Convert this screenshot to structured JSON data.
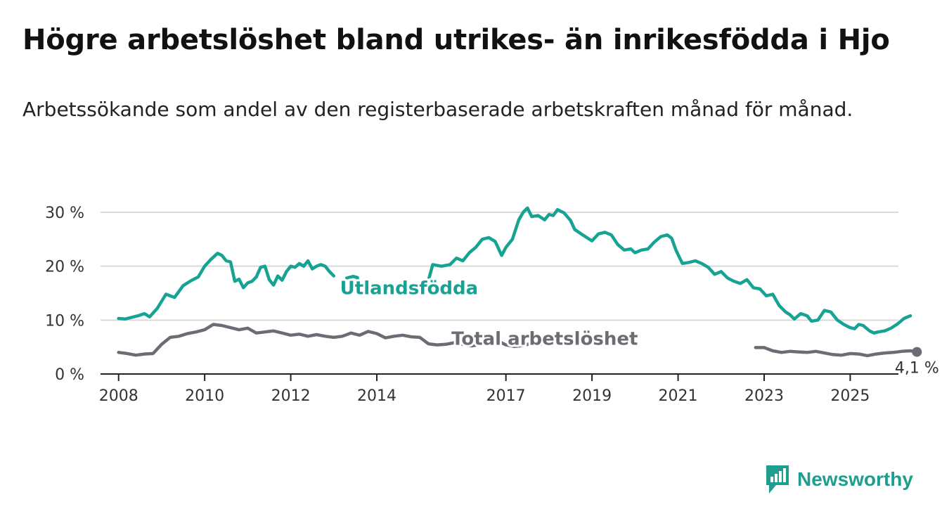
{
  "title": "Högre arbetslöshet bland utrikes- än inrikesfödda i Hjo",
  "subtitle": "Arbetssökande som andel av den registerbaserade arbetskraften månad för månad.",
  "brand": {
    "name": "Newsworthy",
    "color": "#1f9d8f"
  },
  "colors": {
    "foreign": "#17a393",
    "total": "#6e6b74",
    "grid": "#d9d9d9",
    "axis": "#222222"
  },
  "chart_data": {
    "type": "line",
    "title": "Högre arbetslöshet bland utrikes- än inrikesfödda i Hjo",
    "xlabel": "",
    "ylabel": "",
    "xlim": [
      2007.58,
      2026.12
    ],
    "ylim": [
      0,
      30
    ],
    "y_ticks": [
      0,
      10,
      20,
      30
    ],
    "y_tick_labels": [
      "0 %",
      "10 %",
      "20 %",
      "30 %"
    ],
    "x_ticks": [
      2008,
      2010,
      2012,
      2014,
      2017,
      2019,
      2021,
      2023,
      2025
    ],
    "x_tick_labels": [
      "2008",
      "2010",
      "2012",
      "2014",
      "2017",
      "2019",
      "2021",
      "2023",
      "2025"
    ],
    "grid": true,
    "series": [
      {
        "name": "Utlandsfödda",
        "color": "#17a393",
        "segments": [
          [
            [
              2008.0,
              10.3
            ],
            [
              2008.15,
              10.2
            ],
            [
              2008.3,
              10.5
            ],
            [
              2008.45,
              10.8
            ],
            [
              2008.6,
              11.2
            ],
            [
              2008.72,
              10.6
            ],
            [
              2008.9,
              12.2
            ],
            [
              2009.1,
              14.8
            ],
            [
              2009.3,
              14.2
            ],
            [
              2009.5,
              16.4
            ],
            [
              2009.7,
              17.4
            ],
            [
              2009.85,
              18.0
            ],
            [
              2010.0,
              20.0
            ],
            [
              2010.15,
              21.3
            ],
            [
              2010.3,
              22.4
            ],
            [
              2010.4,
              22.0
            ],
            [
              2010.5,
              21.0
            ],
            [
              2010.6,
              20.8
            ],
            [
              2010.7,
              17.2
            ],
            [
              2010.8,
              17.6
            ],
            [
              2010.9,
              16.0
            ],
            [
              2011.0,
              16.9
            ],
            [
              2011.1,
              17.2
            ],
            [
              2011.2,
              18.0
            ],
            [
              2011.3,
              19.8
            ],
            [
              2011.4,
              20.0
            ],
            [
              2011.5,
              17.5
            ],
            [
              2011.6,
              16.5
            ],
            [
              2011.7,
              18.2
            ],
            [
              2011.8,
              17.4
            ],
            [
              2011.9,
              19.0
            ],
            [
              2012.0,
              20.0
            ],
            [
              2012.1,
              19.8
            ],
            [
              2012.2,
              20.5
            ],
            [
              2012.3,
              20.0
            ],
            [
              2012.4,
              21.0
            ],
            [
              2012.5,
              19.5
            ],
            [
              2012.6,
              20.0
            ],
            [
              2012.7,
              20.3
            ],
            [
              2012.8,
              20.0
            ],
            [
              2012.9,
              19.0
            ],
            [
              2013.0,
              18.2
            ]
          ],
          [
            [
              2013.3,
              17.8
            ],
            [
              2013.45,
              18.1
            ],
            [
              2013.55,
              17.9
            ]
          ],
          [
            [
              2013.55,
              17.1
            ]
          ],
          [
            [
              2015.2,
              17.4
            ],
            [
              2015.3,
              20.3
            ],
            [
              2015.5,
              20.0
            ],
            [
              2015.7,
              20.3
            ],
            [
              2015.85,
              21.5
            ],
            [
              2016.0,
              21.0
            ],
            [
              2016.15,
              22.5
            ],
            [
              2016.3,
              23.5
            ],
            [
              2016.45,
              25.0
            ],
            [
              2016.6,
              25.3
            ],
            [
              2016.75,
              24.6
            ],
            [
              2016.9,
              22.0
            ],
            [
              2017.0,
              23.5
            ],
            [
              2017.15,
              25.0
            ],
            [
              2017.3,
              28.6
            ],
            [
              2017.4,
              30.0
            ],
            [
              2017.5,
              30.8
            ],
            [
              2017.6,
              29.2
            ],
            [
              2017.75,
              29.4
            ],
            [
              2017.9,
              28.6
            ],
            [
              2018.0,
              29.6
            ],
            [
              2018.1,
              29.4
            ],
            [
              2018.2,
              30.5
            ],
            [
              2018.35,
              29.9
            ],
            [
              2018.5,
              28.5
            ],
            [
              2018.6,
              26.8
            ],
            [
              2018.75,
              26.0
            ],
            [
              2018.9,
              25.2
            ],
            [
              2019.0,
              24.7
            ],
            [
              2019.15,
              26.0
            ],
            [
              2019.3,
              26.3
            ],
            [
              2019.45,
              25.8
            ],
            [
              2019.6,
              24.0
            ],
            [
              2019.75,
              23.0
            ],
            [
              2019.9,
              23.2
            ],
            [
              2020.0,
              22.5
            ],
            [
              2020.15,
              23.0
            ],
            [
              2020.3,
              23.2
            ],
            [
              2020.45,
              24.5
            ],
            [
              2020.6,
              25.5
            ],
            [
              2020.75,
              25.8
            ],
            [
              2020.85,
              25.2
            ],
            [
              2020.95,
              23.0
            ],
            [
              2021.1,
              20.5
            ],
            [
              2021.25,
              20.7
            ],
            [
              2021.4,
              21.0
            ],
            [
              2021.55,
              20.5
            ],
            [
              2021.7,
              19.8
            ],
            [
              2021.85,
              18.5
            ],
            [
              2022.0,
              19.0
            ],
            [
              2022.15,
              17.8
            ],
            [
              2022.3,
              17.2
            ],
            [
              2022.45,
              16.8
            ],
            [
              2022.6,
              17.5
            ],
            [
              2022.75,
              16.0
            ],
            [
              2022.9,
              15.8
            ],
            [
              2023.05,
              14.5
            ],
            [
              2023.2,
              14.8
            ],
            [
              2023.35,
              12.7
            ],
            [
              2023.5,
              11.5
            ],
            [
              2023.6,
              11.0
            ],
            [
              2023.7,
              10.2
            ],
            [
              2023.85,
              11.2
            ],
            [
              2024.0,
              10.8
            ],
            [
              2024.1,
              9.8
            ],
            [
              2024.25,
              10.0
            ],
            [
              2024.4,
              11.8
            ],
            [
              2024.55,
              11.5
            ],
            [
              2024.7,
              10.0
            ],
            [
              2024.85,
              9.2
            ],
            [
              2025.0,
              8.6
            ],
            [
              2025.1,
              8.4
            ],
            [
              2025.2,
              9.2
            ],
            [
              2025.3,
              9.0
            ],
            [
              2025.45,
              8.0
            ],
            [
              2025.55,
              7.6
            ],
            [
              2025.65,
              7.8
            ],
            [
              2025.8,
              8.0
            ],
            [
              2025.95,
              8.5
            ],
            [
              2026.1,
              9.3
            ],
            [
              2026.25,
              10.3
            ],
            [
              2026.4,
              10.8
            ]
          ]
        ]
      },
      {
        "name": "Total arbetslöshet",
        "color": "#6e6b74",
        "segments": [
          [
            [
              2008.0,
              4.0
            ],
            [
              2008.2,
              3.8
            ],
            [
              2008.4,
              3.5
            ],
            [
              2008.6,
              3.7
            ],
            [
              2008.8,
              3.8
            ],
            [
              2009.0,
              5.5
            ],
            [
              2009.2,
              6.8
            ],
            [
              2009.4,
              7.0
            ],
            [
              2009.6,
              7.5
            ],
            [
              2009.8,
              7.8
            ],
            [
              2010.0,
              8.2
            ],
            [
              2010.2,
              9.2
            ],
            [
              2010.4,
              9.0
            ],
            [
              2010.6,
              8.6
            ],
            [
              2010.8,
              8.2
            ],
            [
              2011.0,
              8.5
            ],
            [
              2011.2,
              7.6
            ],
            [
              2011.4,
              7.8
            ],
            [
              2011.6,
              8.0
            ],
            [
              2011.8,
              7.6
            ],
            [
              2012.0,
              7.2
            ],
            [
              2012.2,
              7.4
            ],
            [
              2012.4,
              7.0
            ],
            [
              2012.6,
              7.3
            ],
            [
              2012.8,
              7.0
            ],
            [
              2013.0,
              6.8
            ],
            [
              2013.2,
              7.0
            ],
            [
              2013.4,
              7.6
            ],
            [
              2013.6,
              7.2
            ],
            [
              2013.8,
              7.9
            ],
            [
              2014.0,
              7.5
            ],
            [
              2014.2,
              6.7
            ],
            [
              2014.4,
              7.0
            ],
            [
              2014.6,
              7.2
            ],
            [
              2014.8,
              6.9
            ],
            [
              2015.0,
              6.8
            ],
            [
              2015.2,
              5.6
            ],
            [
              2015.4,
              5.4
            ],
            [
              2015.6,
              5.5
            ],
            [
              2015.8,
              5.8
            ],
            [
              2016.0,
              5.5
            ],
            [
              2016.2,
              5.2
            ],
            [
              2016.4,
              5.5
            ],
            [
              2016.6,
              5.9
            ],
            [
              2016.8,
              6.2
            ],
            [
              2017.0,
              5.4
            ],
            [
              2017.2,
              5.1
            ],
            [
              2017.4,
              5.3
            ],
            [
              2017.6,
              5.7
            ],
            [
              2017.8,
              5.5
            ]
          ],
          [
            [
              2022.8,
              4.9
            ],
            [
              2023.0,
              4.9
            ],
            [
              2023.2,
              4.3
            ],
            [
              2023.4,
              4.0
            ],
            [
              2023.6,
              4.2
            ],
            [
              2023.8,
              4.1
            ],
            [
              2024.0,
              4.0
            ],
            [
              2024.2,
              4.2
            ],
            [
              2024.4,
              3.9
            ],
            [
              2024.6,
              3.6
            ],
            [
              2024.8,
              3.5
            ],
            [
              2025.0,
              3.8
            ],
            [
              2025.2,
              3.7
            ],
            [
              2025.4,
              3.4
            ],
            [
              2025.6,
              3.7
            ],
            [
              2025.8,
              3.9
            ],
            [
              2026.0,
              4.0
            ],
            [
              2026.2,
              4.2
            ],
            [
              2026.4,
              4.3
            ],
            [
              2026.6,
              4.1
            ]
          ]
        ]
      }
    ],
    "labels": [
      {
        "series": "Utlandsfödda",
        "text": "Utlandsfödda",
        "x": 2014.75,
        "y": 14.8
      },
      {
        "series": "Total arbetslöshet",
        "text": "Total arbetslöshet",
        "x": 2017.9,
        "y": 5.4
      }
    ],
    "end_marker": {
      "x": 2026.55,
      "y": 4.1,
      "label": "4,1 %"
    }
  }
}
